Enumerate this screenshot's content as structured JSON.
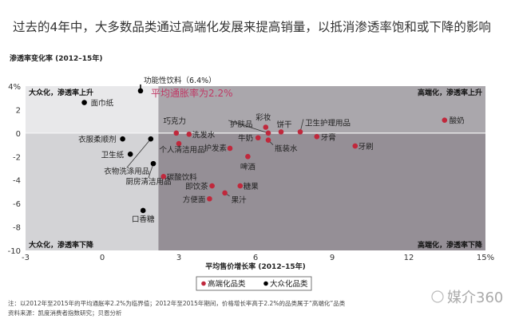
{
  "title": "过去的4年中，大多数品类通过高端化发展来提高销量，以抵消渗透率饱和或下降的影响",
  "colors": {
    "premium": "#c0283c",
    "mass": "#000000",
    "upper_left": "#e8e8ea",
    "lower_left": "#d3d3d6",
    "upper_right": "#aaa7ac",
    "lower_right": "#958f96",
    "inflation_text": "#c03a66"
  },
  "chart_data": {
    "type": "scatter",
    "xlabel": "平均售价增长率 (2012–15年)",
    "ylabel": "渗透率变化率 (2012–15年)",
    "xlim": [
      -3,
      15
    ],
    "ylim": [
      -10,
      4
    ],
    "x_ticks": [
      "-3",
      "0",
      "3",
      "6",
      "9",
      "12",
      "15%"
    ],
    "x_tick_values": [
      -3,
      0,
      3,
      6,
      9,
      12,
      15
    ],
    "y_ticks": [
      "4%",
      "2",
      "0",
      "-2",
      "-4",
      "-6",
      "-8",
      "-10"
    ],
    "y_tick_values": [
      4,
      2,
      0,
      -2,
      -4,
      -6,
      -8,
      -10
    ],
    "x_threshold": 2.2,
    "y_threshold": 0,
    "threshold_label": "平均通胀率为2.2%",
    "quadrant_labels": {
      "upper_left": "大众化，渗透率上升",
      "upper_right": "高端化，渗透率上升",
      "lower_left": "大众化，渗透率下降",
      "lower_right": "高端化，渗透率下降"
    },
    "legend": {
      "position": "bottom-center",
      "entries": [
        "高端化品类",
        "大众化品类"
      ]
    },
    "series": [
      {
        "name": "大众化品类",
        "color": "#000000",
        "points": [
          {
            "label": "面巾纸",
            "x": -0.7,
            "y": 2.6
          },
          {
            "label": "功能性饮料（6.4%）",
            "x": 1.5,
            "y": 3.6
          },
          {
            "label": "衣服柔顺剂",
            "x": 0.8,
            "y": -0.5
          },
          {
            "label": "卫生纸",
            "x": 1.1,
            "y": -1.8
          },
          {
            "label": "衣物洗涤用品",
            "x": 1.9,
            "y": -0.5
          },
          {
            "label": "厨房清洁用品",
            "x": 2.0,
            "y": -2.6
          },
          {
            "label": "口香糖",
            "x": 1.6,
            "y": -6.6
          }
        ]
      },
      {
        "name": "高端化品类",
        "color": "#c0283c",
        "points": [
          {
            "label": "巧克力",
            "x": 2.9,
            "y": 0.0
          },
          {
            "label": "洗发水",
            "x": 3.4,
            "y": -0.1
          },
          {
            "label": "个人清洁用品",
            "x": 3.0,
            "y": -0.9
          },
          {
            "label": "护发素",
            "x": 5.0,
            "y": -1.3
          },
          {
            "label": "啤酒",
            "x": 5.7,
            "y": -2.0
          },
          {
            "label": "彩妆",
            "x": 6.4,
            "y": 0.5
          },
          {
            "label": "护肤品",
            "x": 6.5,
            "y": 0.0
          },
          {
            "label": "牛奶",
            "x": 6.1,
            "y": -0.4
          },
          {
            "label": "瓶装水",
            "x": 6.5,
            "y": -0.6
          },
          {
            "label": "饼干",
            "x": 7.0,
            "y": 0.1
          },
          {
            "label": "卫生护理用品",
            "x": 7.75,
            "y": 0.1
          },
          {
            "label": "牙膏",
            "x": 8.4,
            "y": -0.3
          },
          {
            "label": "牙刷",
            "x": 9.9,
            "y": -1.1
          },
          {
            "label": "酸奶",
            "x": 13.4,
            "y": 1.1
          },
          {
            "label": "碳酸饮料",
            "x": 2.4,
            "y": -3.7
          },
          {
            "label": "即饮茶",
            "x": 4.3,
            "y": -4.5
          },
          {
            "label": "糖果",
            "x": 5.4,
            "y": -4.5
          },
          {
            "label": "果汁",
            "x": 4.8,
            "y": -5.1
          },
          {
            "label": "方便面",
            "x": 4.2,
            "y": -5.6
          }
        ]
      }
    ]
  },
  "notes": [
    "注：以2012年至2015年的平均通胀率2.2%为临界值；2012年至2015年期间，价格增长率高于2.2%的品类属于“高端化”品类",
    "资料来源：凯度消费者指数研究；贝恩分析"
  ],
  "watermark": "媒介360"
}
